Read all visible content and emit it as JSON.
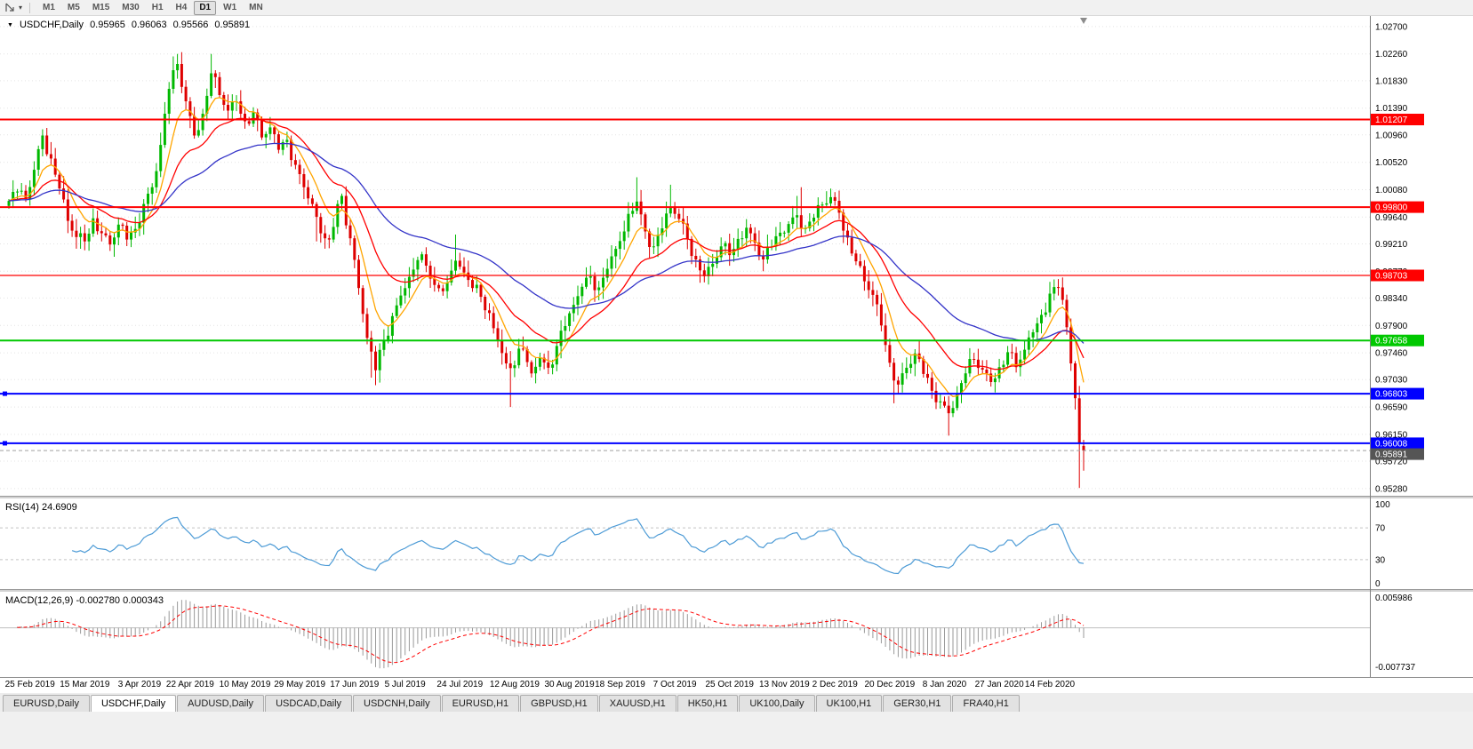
{
  "toolbar": {
    "timeframes": [
      {
        "label": "M1",
        "active": false
      },
      {
        "label": "M5",
        "active": false
      },
      {
        "label": "M15",
        "active": false
      },
      {
        "label": "M30",
        "active": false
      },
      {
        "label": "H1",
        "active": false
      },
      {
        "label": "H4",
        "active": false
      },
      {
        "label": "D1",
        "active": true
      },
      {
        "label": "W1",
        "active": false
      },
      {
        "label": "MN",
        "active": false
      }
    ]
  },
  "chart": {
    "title": {
      "symbol": "USDCHF,Daily",
      "open": "0.95965",
      "high": "0.96063",
      "low": "0.95566",
      "close": "0.95891"
    },
    "levels": [
      {
        "price": 1.01207,
        "label": "1.01207",
        "color": "#FF0000",
        "width": 2,
        "handles": false
      },
      {
        "price": 0.998,
        "label": "0.99800",
        "color": "#FF0000",
        "width": 2,
        "handles": false
      },
      {
        "price": 0.98703,
        "label": "0.98703",
        "color": "#FF0000",
        "width": 1.3,
        "handles": false
      },
      {
        "price": 0.97658,
        "label": "0.97658",
        "color": "#00C800",
        "width": 2,
        "handles": false
      },
      {
        "price": 0.96803,
        "label": "0.96803",
        "color": "#0000FF",
        "width": 2,
        "handles": true
      },
      {
        "price": 0.96008,
        "label": "0.96008",
        "color": "#0000FF",
        "width": 2,
        "handles": true
      }
    ],
    "bid": {
      "price": 0.95891,
      "label": "0.95891",
      "line_color": "#A0A0A0",
      "tag_color": "#555555"
    }
  },
  "indicators": {
    "rsi": {
      "label": "RSI(14) 24.6909",
      "value": 24.6909,
      "period": 14,
      "scale": [
        "100",
        "70",
        "30",
        "0"
      ],
      "levels": [
        70,
        30
      ],
      "color": "#4D9BD6"
    },
    "macd": {
      "label": "MACD(12,26,9) -0.002780 0.000343",
      "main": -0.00278,
      "signal": 0.000343,
      "scale_top": "0.005986",
      "scale_bottom": "-0.007737",
      "hist_color": "#9A9A9A",
      "signal_color": "#FF0000"
    }
  },
  "chart_data": {
    "type": "candlestick",
    "symbol": "USDCHF",
    "period": "Daily",
    "bars": 256,
    "ylim": [
      0.95164,
      1.0287
    ],
    "y_ticks": [
      "1.02700",
      "1.02260",
      "1.01830",
      "1.01390",
      "1.00960",
      "1.00520",
      "1.00080",
      "0.99640",
      "0.99210",
      "0.98770",
      "0.98340",
      "0.97900",
      "0.97460",
      "0.97030",
      "0.96590",
      "0.96150",
      "0.95720",
      "0.95280"
    ],
    "x_ticks": [
      {
        "i": 5,
        "label": "25 Feb 2019"
      },
      {
        "i": 18,
        "label": "15 Mar 2019"
      },
      {
        "i": 31,
        "label": "3 Apr 2019"
      },
      {
        "i": 43,
        "label": "22 Apr 2019"
      },
      {
        "i": 56,
        "label": "10 May 2019"
      },
      {
        "i": 69,
        "label": "29 May 2019"
      },
      {
        "i": 82,
        "label": "17 Jun 2019"
      },
      {
        "i": 94,
        "label": "5 Jul 2019"
      },
      {
        "i": 107,
        "label": "24 Jul 2019"
      },
      {
        "i": 120,
        "label": "12 Aug 2019"
      },
      {
        "i": 133,
        "label": "30 Aug 2019"
      },
      {
        "i": 145,
        "label": "18 Sep 2019"
      },
      {
        "i": 158,
        "label": "7 Oct 2019"
      },
      {
        "i": 171,
        "label": "25 Oct 2019"
      },
      {
        "i": 184,
        "label": "13 Nov 2019"
      },
      {
        "i": 196,
        "label": "2 Dec 2019"
      },
      {
        "i": 209,
        "label": "20 Dec 2019"
      },
      {
        "i": 222,
        "label": "8 Jan 2020"
      },
      {
        "i": 235,
        "label": "27 Jan 2020"
      },
      {
        "i": 247,
        "label": "14 Feb 2020"
      }
    ],
    "close_anchors": [
      [
        0,
        0.999
      ],
      [
        2,
        1.0005
      ],
      [
        4,
        0.9993
      ],
      [
        6,
        1.004
      ],
      [
        8,
        1.0095
      ],
      [
        10,
        1.0058
      ],
      [
        12,
        1.001
      ],
      [
        14,
        0.9958
      ],
      [
        16,
        0.9932
      ],
      [
        18,
        0.9925
      ],
      [
        20,
        0.9962
      ],
      [
        22,
        0.9938
      ],
      [
        24,
        0.992
      ],
      [
        26,
        0.9952
      ],
      [
        28,
        0.9928
      ],
      [
        30,
        0.9945
      ],
      [
        32,
        0.9985
      ],
      [
        34,
        1.0012
      ],
      [
        36,
        1.008
      ],
      [
        38,
        1.017
      ],
      [
        40,
        1.021
      ],
      [
        42,
        1.015
      ],
      [
        44,
        1.0095
      ],
      [
        46,
        1.013
      ],
      [
        48,
        1.0195
      ],
      [
        50,
        1.016
      ],
      [
        52,
        1.0135
      ],
      [
        54,
        1.015
      ],
      [
        56,
        1.0118
      ],
      [
        58,
        1.0132
      ],
      [
        60,
        1.0092
      ],
      [
        62,
        1.0108
      ],
      [
        64,
        1.0072
      ],
      [
        66,
        1.0088
      ],
      [
        68,
        1.0048
      ],
      [
        70,
        1.0012
      ],
      [
        72,
        0.9985
      ],
      [
        74,
        0.9938
      ],
      [
        75,
        0.993
      ],
      [
        76,
        0.9928
      ],
      [
        78,
        0.9985
      ],
      [
        79,
        0.9998
      ],
      [
        81,
        0.993
      ],
      [
        83,
        0.985
      ],
      [
        85,
        0.977
      ],
      [
        87,
        0.9718
      ],
      [
        89,
        0.9765
      ],
      [
        91,
        0.9805
      ],
      [
        93,
        0.9838
      ],
      [
        95,
        0.9868
      ],
      [
        97,
        0.9895
      ],
      [
        99,
        0.9886
      ],
      [
        101,
        0.9855
      ],
      [
        103,
        0.9845
      ],
      [
        105,
        0.9878
      ],
      [
        106,
        0.9894
      ],
      [
        108,
        0.9875
      ],
      [
        110,
        0.985
      ],
      [
        112,
        0.9836
      ],
      [
        114,
        0.981
      ],
      [
        116,
        0.9765
      ],
      [
        118,
        0.9729
      ],
      [
        120,
        0.9726
      ],
      [
        122,
        0.9752
      ],
      [
        124,
        0.9713
      ],
      [
        126,
        0.9738
      ],
      [
        128,
        0.9722
      ],
      [
        130,
        0.9757
      ],
      [
        132,
        0.9789
      ],
      [
        134,
        0.9823
      ],
      [
        136,
        0.9852
      ],
      [
        138,
        0.9869
      ],
      [
        140,
        0.9851
      ],
      [
        142,
        0.9881
      ],
      [
        144,
        0.9913
      ],
      [
        146,
        0.9941
      ],
      [
        148,
        0.9974
      ],
      [
        149,
        0.9989
      ],
      [
        151,
        0.9941
      ],
      [
        153,
        0.9917
      ],
      [
        155,
        0.9946
      ],
      [
        157,
        0.9981
      ],
      [
        159,
        0.9961
      ],
      [
        161,
        0.9929
      ],
      [
        163,
        0.9896
      ],
      [
        165,
        0.9869
      ],
      [
        167,
        0.9889
      ],
      [
        169,
        0.9917
      ],
      [
        171,
        0.9903
      ],
      [
        173,
        0.9929
      ],
      [
        175,
        0.9947
      ],
      [
        177,
        0.9923
      ],
      [
        179,
        0.9896
      ],
      [
        181,
        0.9917
      ],
      [
        183,
        0.9939
      ],
      [
        185,
        0.9953
      ],
      [
        187,
        0.9967
      ],
      [
        189,
        0.9946
      ],
      [
        191,
        0.9963
      ],
      [
        193,
        0.9984
      ],
      [
        195,
        0.9996
      ],
      [
        197,
        0.9971
      ],
      [
        199,
        0.9931
      ],
      [
        201,
        0.9893
      ],
      [
        203,
        0.9861
      ],
      [
        205,
        0.9839
      ],
      [
        207,
        0.979
      ],
      [
        209,
        0.973
      ],
      [
        211,
        0.9695
      ],
      [
        213,
        0.9722
      ],
      [
        215,
        0.9745
      ],
      [
        217,
        0.9712
      ],
      [
        219,
        0.9685
      ],
      [
        221,
        0.9668
      ],
      [
        223,
        0.9649
      ],
      [
        225,
        0.9681
      ],
      [
        227,
        0.9713
      ],
      [
        229,
        0.9735
      ],
      [
        231,
        0.9719
      ],
      [
        233,
        0.9699
      ],
      [
        235,
        0.9723
      ],
      [
        237,
        0.9747
      ],
      [
        239,
        0.9723
      ],
      [
        241,
        0.9751
      ],
      [
        243,
        0.9779
      ],
      [
        245,
        0.9807
      ],
      [
        247,
        0.9841
      ],
      [
        249,
        0.9851
      ],
      [
        250,
        0.9831
      ],
      [
        251,
        0.9787
      ],
      [
        252,
        0.9729
      ],
      [
        253,
        0.9673
      ],
      [
        254,
        0.96
      ],
      [
        255,
        0.95891
      ]
    ],
    "wick_overrides": {
      "8": {
        "h": 1.0105
      },
      "39": {
        "h": 1.0222
      },
      "40": {
        "h": 1.0226
      },
      "48": {
        "h": 1.0226
      },
      "73": {
        "l": 0.9925
      },
      "75": {
        "l": 0.9918
      },
      "86": {
        "l": 0.9706
      },
      "87": {
        "l": 0.9694
      },
      "106": {
        "h": 0.9936
      },
      "119": {
        "l": 0.9659
      },
      "149": {
        "h": 1.0028
      },
      "157": {
        "h": 1.0016
      },
      "187": {
        "h": 0.9998
      },
      "188": {
        "h": 1.0012
      },
      "194": {
        "h": 1.0005
      },
      "210": {
        "l": 0.9665
      },
      "223": {
        "l": 0.9613
      },
      "249": {
        "h": 0.9856
      },
      "254": {
        "l": 0.9529
      }
    },
    "last_bar": {
      "o": 0.95965,
      "h": 0.96063,
      "l": 0.95566,
      "c": 0.95891
    },
    "ma_periods": {
      "fast": 8,
      "mid": 21,
      "slow": 50
    },
    "colors": {
      "bull": "#00B800",
      "bear": "#DE0000",
      "ma_fast": "#FFA500",
      "ma_mid": "#FF0000",
      "ma_slow": "#3434C8",
      "grid": "#E3E3E3"
    },
    "indicator_summary": [
      {
        "type": "RSI",
        "period": 14,
        "last": 24.6909
      },
      {
        "type": "MACD",
        "fast": 12,
        "slow": 26,
        "signal": 9,
        "last_main": -0.00278,
        "last_signal": 0.000343
      }
    ]
  },
  "tabs": [
    {
      "label": "EURUSD,Daily",
      "active": false
    },
    {
      "label": "USDCHF,Daily",
      "active": true
    },
    {
      "label": "AUDUSD,Daily",
      "active": false
    },
    {
      "label": "USDCAD,Daily",
      "active": false
    },
    {
      "label": "USDCNH,Daily",
      "active": false
    },
    {
      "label": "EURUSD,H1",
      "active": false
    },
    {
      "label": "GBPUSD,H1",
      "active": false
    },
    {
      "label": "XAUUSD,H1",
      "active": false
    },
    {
      "label": "HK50,H1",
      "active": false
    },
    {
      "label": "UK100,Daily",
      "active": false
    },
    {
      "label": "UK100,H1",
      "active": false
    },
    {
      "label": "GER30,H1",
      "active": false
    },
    {
      "label": "FRA40,H1",
      "active": false
    }
  ]
}
